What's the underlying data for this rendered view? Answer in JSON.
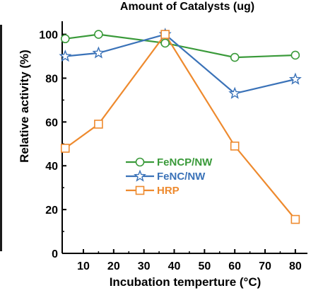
{
  "chart_data": {
    "type": "line",
    "title": "Amount of Catalysts (ug)",
    "xlabel": "Incubation temperture (°C)",
    "ylabel": "Relative activity (%)",
    "xlim": [
      3,
      84
    ],
    "ylim": [
      0,
      106
    ],
    "xticks": [
      10,
      20,
      30,
      40,
      50,
      60,
      70,
      80
    ],
    "yticks": [
      0,
      20,
      40,
      60,
      80,
      100
    ],
    "grid": false,
    "legend_position": "center-left",
    "x": [
      4,
      15,
      37,
      60,
      80
    ],
    "series": [
      {
        "name": "FeNCP/NW",
        "marker": "circle",
        "color": "#3a9a3a",
        "values": [
          98,
          100,
          96,
          89.5,
          90.5
        ]
      },
      {
        "name": "FeNC/NW",
        "marker": "star",
        "color": "#3a72b8",
        "values": [
          90,
          91.5,
          100,
          73,
          79.5
        ]
      },
      {
        "name": "HRP",
        "marker": "square",
        "color": "#ee8a2e",
        "values": [
          48,
          59,
          100,
          49,
          15.5
        ]
      }
    ]
  }
}
